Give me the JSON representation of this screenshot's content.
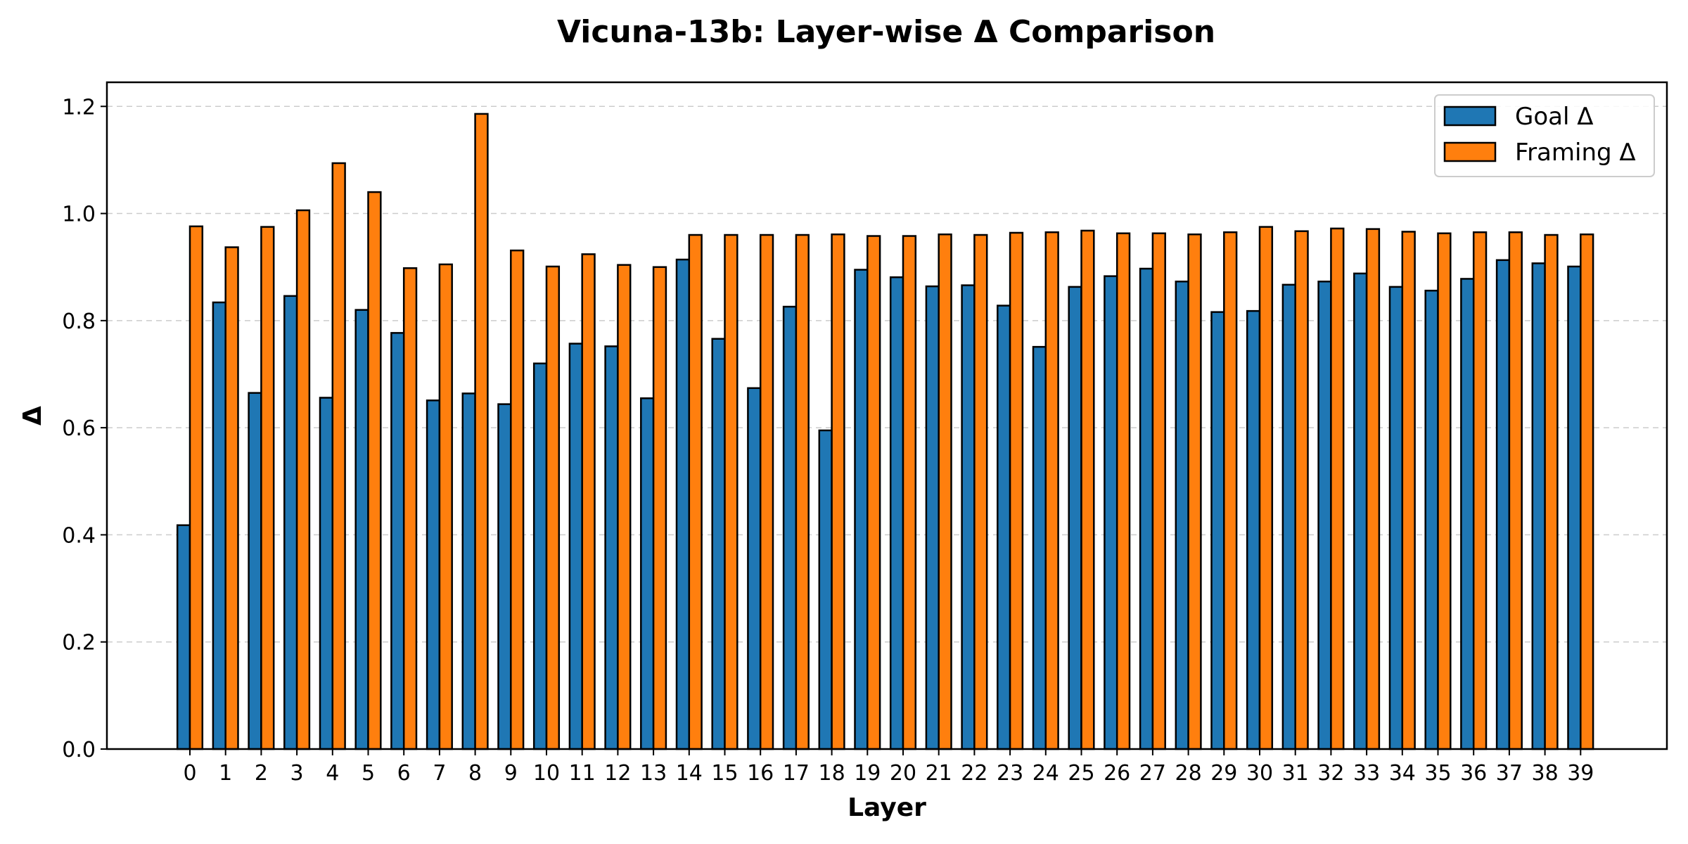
{
  "chart_data": {
    "type": "bar",
    "title": "Vicuna-13b: Layer-wise Δ Comparison",
    "xlabel": "Layer",
    "ylabel": "Δ",
    "ylim": [
      0,
      1.245
    ],
    "yticks": [
      "0.0",
      "0.2",
      "0.4",
      "0.6",
      "0.8",
      "1.0",
      "1.2"
    ],
    "grid": "y, dashed",
    "legend_position": "top-right",
    "categories": [
      "0",
      "1",
      "2",
      "3",
      "4",
      "5",
      "6",
      "7",
      "8",
      "9",
      "10",
      "11",
      "12",
      "13",
      "14",
      "15",
      "16",
      "17",
      "18",
      "19",
      "20",
      "21",
      "22",
      "23",
      "24",
      "25",
      "26",
      "27",
      "28",
      "29",
      "30",
      "31",
      "32",
      "33",
      "34",
      "35",
      "36",
      "37",
      "38",
      "39"
    ],
    "series": [
      {
        "name": "Goal Δ",
        "color": "#1f77b4",
        "values": [
          0.418,
          0.834,
          0.665,
          0.846,
          0.656,
          0.82,
          0.777,
          0.651,
          0.664,
          0.644,
          0.72,
          0.757,
          0.752,
          0.655,
          0.914,
          0.766,
          0.674,
          0.826,
          0.595,
          0.895,
          0.881,
          0.864,
          0.866,
          0.828,
          0.751,
          0.863,
          0.883,
          0.897,
          0.873,
          0.816,
          0.818,
          0.867,
          0.873,
          0.888,
          0.863,
          0.856,
          0.878,
          0.913,
          0.907,
          0.901
        ]
      },
      {
        "name": "Framing Δ",
        "color": "#ff7f0e",
        "values": [
          0.976,
          0.937,
          0.975,
          1.006,
          1.094,
          1.04,
          0.898,
          0.905,
          1.186,
          0.931,
          0.901,
          0.924,
          0.904,
          0.9,
          0.96,
          0.96,
          0.96,
          0.96,
          0.961,
          0.958,
          0.958,
          0.961,
          0.96,
          0.964,
          0.965,
          0.968,
          0.963,
          0.963,
          0.961,
          0.965,
          0.975,
          0.967,
          0.972,
          0.971,
          0.966,
          0.963,
          0.965,
          0.965,
          0.96,
          0.961
        ]
      }
    ]
  }
}
